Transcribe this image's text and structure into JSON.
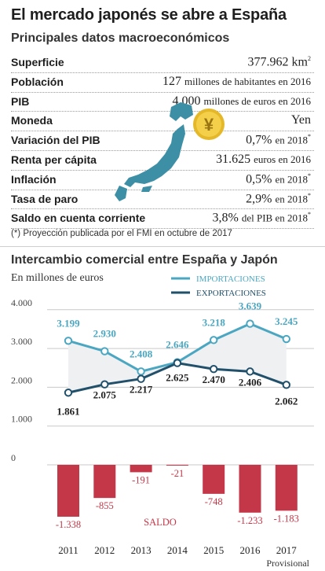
{
  "header": {
    "title": "El mercado japonés se abre a España",
    "subtitle": "Principales datos macroeconómicos"
  },
  "macro": [
    {
      "label": "Superficie",
      "value": "377.962",
      "unit": "km",
      "sup": "2"
    },
    {
      "label": "Población",
      "value": "127",
      "unit": "millones de habitantes en 2016",
      "sup": ""
    },
    {
      "label": "PIB",
      "value": "4.000",
      "unit": "millones de euros en 2016",
      "sup": ""
    },
    {
      "label": "Moneda",
      "value": "Yen",
      "unit": "",
      "sup": ""
    },
    {
      "label": "Variación del PIB",
      "value": "0,7%",
      "unit": "en 2018",
      "sup": "*"
    },
    {
      "label": "Renta per cápita",
      "value": "31.625",
      "unit": "euros en 2016",
      "sup": ""
    },
    {
      "label": "Inflación",
      "value": "0,5%",
      "unit": "en 2018",
      "sup": "*"
    },
    {
      "label": "Tasa de paro",
      "value": "2,9%",
      "unit": "en 2018",
      "sup": "*"
    },
    {
      "label": "Saldo en cuenta corriente",
      "value": "3,8%",
      "unit": "del PIB en 2018",
      "sup": "*"
    }
  ],
  "footnote": "(*) Proyección publicada por el FMI en octubre de 2017",
  "icons": {
    "map": "japan-map-icon",
    "coin": "yen-coin-icon",
    "coin_symbol": "¥"
  },
  "colors": {
    "importaciones": "#4ba7c1",
    "exportaciones": "#21506b",
    "saldo": "#c33748",
    "band": "#eef0f2"
  },
  "chart_data": {
    "type": "line",
    "title": "Intercambio comercial entre España y Japón",
    "unit_label": "En millones de euros",
    "x": [
      "2011",
      "2012",
      "2013",
      "2014",
      "2015",
      "2016",
      "2017"
    ],
    "x_labels": [
      "2011",
      "2012",
      "2013",
      "2014",
      "2015",
      "2016",
      "2017"
    ],
    "x_note": "Provisional",
    "y_ticks": [
      "0",
      "1.000",
      "2.000",
      "3.000",
      "4.000"
    ],
    "ylim": [
      0,
      4000
    ],
    "series": [
      {
        "name": "IMPORTACIONES",
        "values": [
          3199,
          2930,
          2408,
          2646,
          3218,
          3639,
          3245
        ],
        "labels": [
          "3.199",
          "2.930",
          "2.408",
          "2.646",
          "3.218",
          "3.639",
          "3.245"
        ]
      },
      {
        "name": "EXPORTACIONES",
        "values": [
          1861,
          2075,
          2217,
          2625,
          2470,
          2406,
          2062
        ],
        "labels": [
          "1.861",
          "2.075",
          "2.217",
          "2.625",
          "2.470",
          "2.406",
          "2.062"
        ]
      }
    ],
    "balance": {
      "name": "SALDO",
      "type": "bar",
      "values": [
        -1338,
        -855,
        -191,
        -21,
        -748,
        -1233,
        -1183
      ],
      "labels": [
        "-1.338",
        "-855",
        "-191",
        "-21",
        "-748",
        "-1.233",
        "-1.183"
      ]
    },
    "grid": true,
    "legend": "top-right"
  }
}
